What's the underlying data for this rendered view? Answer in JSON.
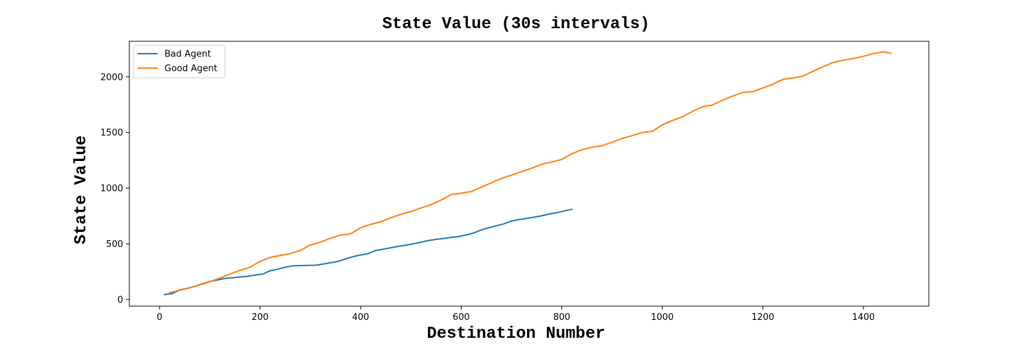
{
  "chart_data": {
    "type": "line",
    "title": "State Value (30s intervals)",
    "xlabel": "Destination Number",
    "ylabel": "State Value",
    "xlim": [
      -60,
      1530
    ],
    "ylim": [
      -60,
      2320
    ],
    "xticks": [
      0,
      200,
      400,
      600,
      800,
      1000,
      1200,
      1400
    ],
    "yticks": [
      0,
      500,
      1000,
      1500,
      2000
    ],
    "grid": false,
    "legend_position": "top-left",
    "series": [
      {
        "name": "Bad Agent",
        "color": "#1f77b4",
        "x": [
          10,
          25,
          40,
          55,
          70,
          85,
          100,
          115,
          130,
          145,
          160,
          175,
          190,
          205,
          220,
          235,
          250,
          265,
          280,
          295,
          310,
          325,
          340,
          355,
          370,
          385,
          400,
          415,
          430,
          445,
          460,
          475,
          490,
          505,
          520,
          535,
          550,
          565,
          580,
          595,
          610,
          625,
          640,
          655,
          670,
          685,
          700,
          715,
          730,
          745,
          760,
          775,
          790,
          805,
          820
        ],
        "y": [
          45,
          52,
          85,
          100,
          118,
          140,
          162,
          175,
          190,
          195,
          203,
          208,
          220,
          228,
          258,
          272,
          290,
          302,
          305,
          306,
          308,
          318,
          330,
          342,
          365,
          385,
          400,
          412,
          440,
          452,
          465,
          478,
          488,
          500,
          515,
          530,
          540,
          548,
          558,
          565,
          580,
          598,
          625,
          645,
          662,
          680,
          705,
          718,
          728,
          740,
          752,
          768,
          780,
          795,
          810
        ]
      },
      {
        "name": "Good Agent",
        "color": "#ff7f0e",
        "x": [
          20,
          40,
          60,
          80,
          100,
          120,
          140,
          160,
          180,
          200,
          220,
          240,
          260,
          280,
          300,
          320,
          340,
          360,
          380,
          400,
          420,
          440,
          460,
          480,
          500,
          520,
          540,
          560,
          580,
          600,
          620,
          640,
          660,
          680,
          700,
          720,
          740,
          760,
          780,
          800,
          820,
          840,
          860,
          880,
          900,
          920,
          940,
          960,
          980,
          1000,
          1020,
          1040,
          1060,
          1080,
          1100,
          1120,
          1140,
          1160,
          1180,
          1200,
          1220,
          1240,
          1260,
          1280,
          1300,
          1320,
          1340,
          1360,
          1380,
          1400,
          1420,
          1440,
          1455
        ],
        "y": [
          62,
          82,
          105,
          130,
          160,
          192,
          228,
          262,
          290,
          342,
          378,
          395,
          412,
          440,
          490,
          515,
          550,
          578,
          590,
          645,
          675,
          698,
          735,
          765,
          790,
          822,
          852,
          893,
          942,
          955,
          970,
          1010,
          1048,
          1088,
          1118,
          1148,
          1180,
          1215,
          1235,
          1258,
          1310,
          1345,
          1368,
          1382,
          1412,
          1448,
          1472,
          1500,
          1510,
          1570,
          1608,
          1642,
          1690,
          1732,
          1748,
          1790,
          1828,
          1860,
          1868,
          1900,
          1935,
          1978,
          1990,
          2008,
          2052,
          2092,
          2130,
          2150,
          2165,
          2185,
          2210,
          2225,
          2212
        ]
      }
    ]
  }
}
